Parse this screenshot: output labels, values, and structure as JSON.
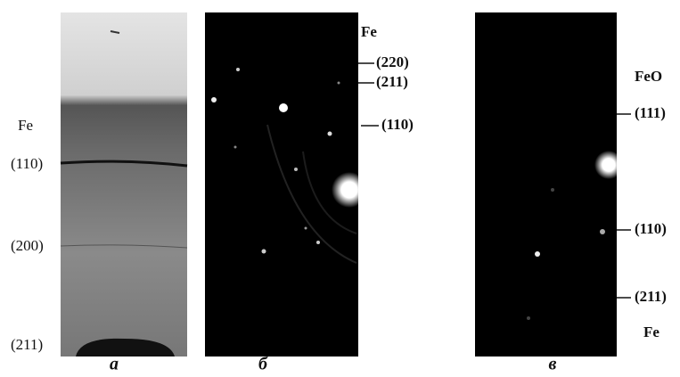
{
  "panels": [
    {
      "caption": "а",
      "labels": [
        "Fe",
        "(110)",
        "(200)",
        "(211)"
      ]
    },
    {
      "caption": "б",
      "labels": [
        "Fe",
        "(220)",
        "(211)",
        "(110)"
      ]
    },
    {
      "caption": "в",
      "labels": [
        "FeO",
        "(111)",
        "(110)",
        "(211)",
        "Fe"
      ]
    }
  ]
}
